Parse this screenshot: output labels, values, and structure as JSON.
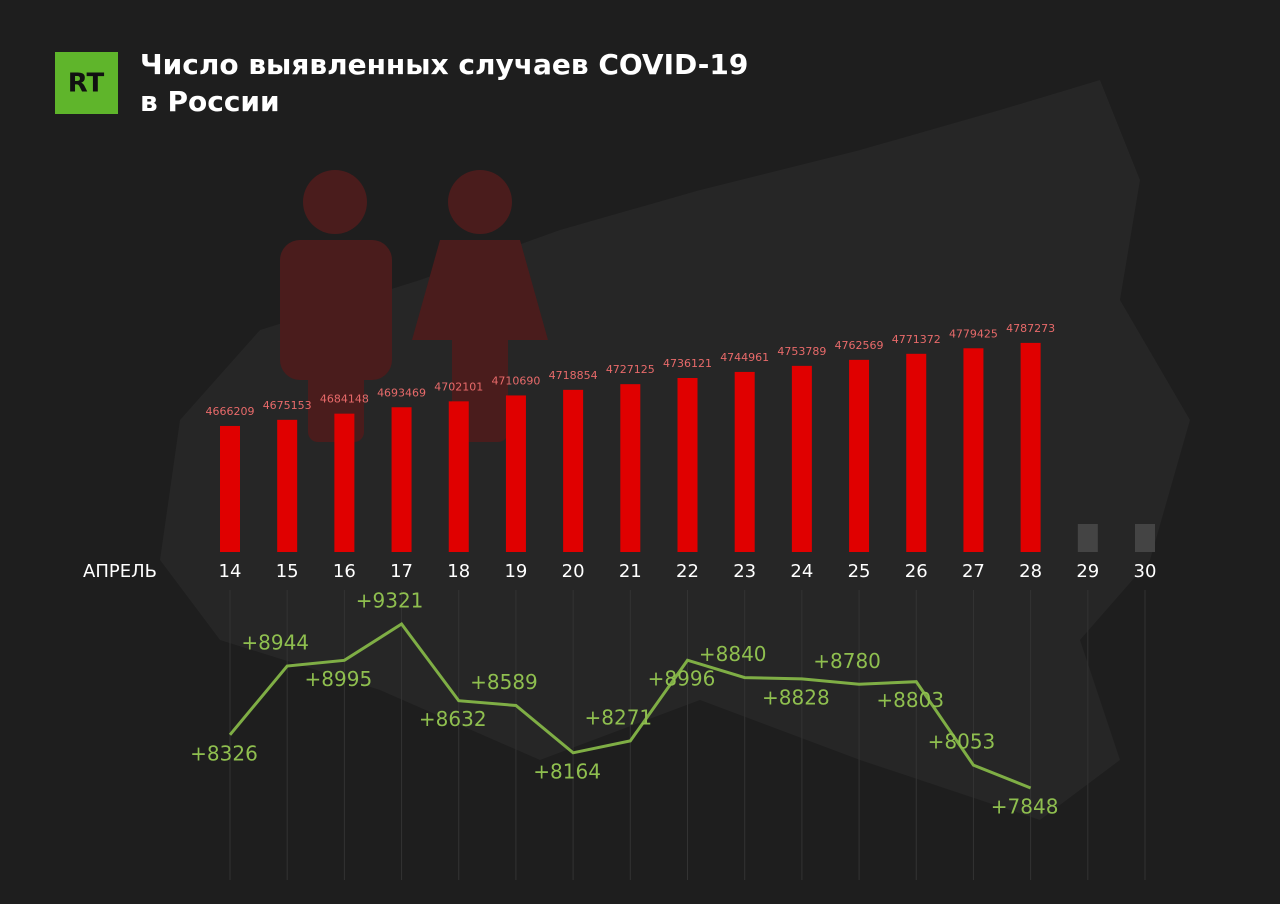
{
  "logo": "RT",
  "title": [
    "Число выявленных случаев COVID-19",
    "в России"
  ],
  "axis_label": "АПРЕЛЬ",
  "chart_data": [
    {
      "type": "bar",
      "categories": [
        "14",
        "15",
        "16",
        "17",
        "18",
        "19",
        "20",
        "21",
        "22",
        "23",
        "24",
        "25",
        "26",
        "27",
        "28",
        "29",
        "30"
      ],
      "values": [
        4666209,
        4675153,
        4684148,
        4693469,
        4702101,
        4710690,
        4718854,
        4727125,
        4736121,
        4744961,
        4753789,
        4762569,
        4771372,
        4779425,
        4787273,
        null,
        null
      ],
      "color": "#e00000",
      "ylim": [
        4482500,
        4849800
      ]
    },
    {
      "type": "line",
      "categories": [
        "14",
        "15",
        "16",
        "17",
        "18",
        "19",
        "20",
        "21",
        "22",
        "23",
        "24",
        "25",
        "26",
        "27",
        "28",
        "29",
        "30"
      ],
      "values": [
        8326,
        8944,
        8995,
        9321,
        8632,
        8589,
        8164,
        8271,
        8996,
        8840,
        8828,
        8780,
        8803,
        8053,
        7848,
        null,
        null
      ],
      "value_labels": [
        "+8326",
        "+8944",
        "+8995",
        "+9321",
        "+8632",
        "+8589",
        "+8164",
        "+8271",
        "+8996",
        "+8840",
        "+8828",
        "+8780",
        "+8803",
        "+8053",
        "+7848",
        null,
        null
      ],
      "color": "#7fae45",
      "ylim": [
        7740,
        9537
      ]
    }
  ]
}
